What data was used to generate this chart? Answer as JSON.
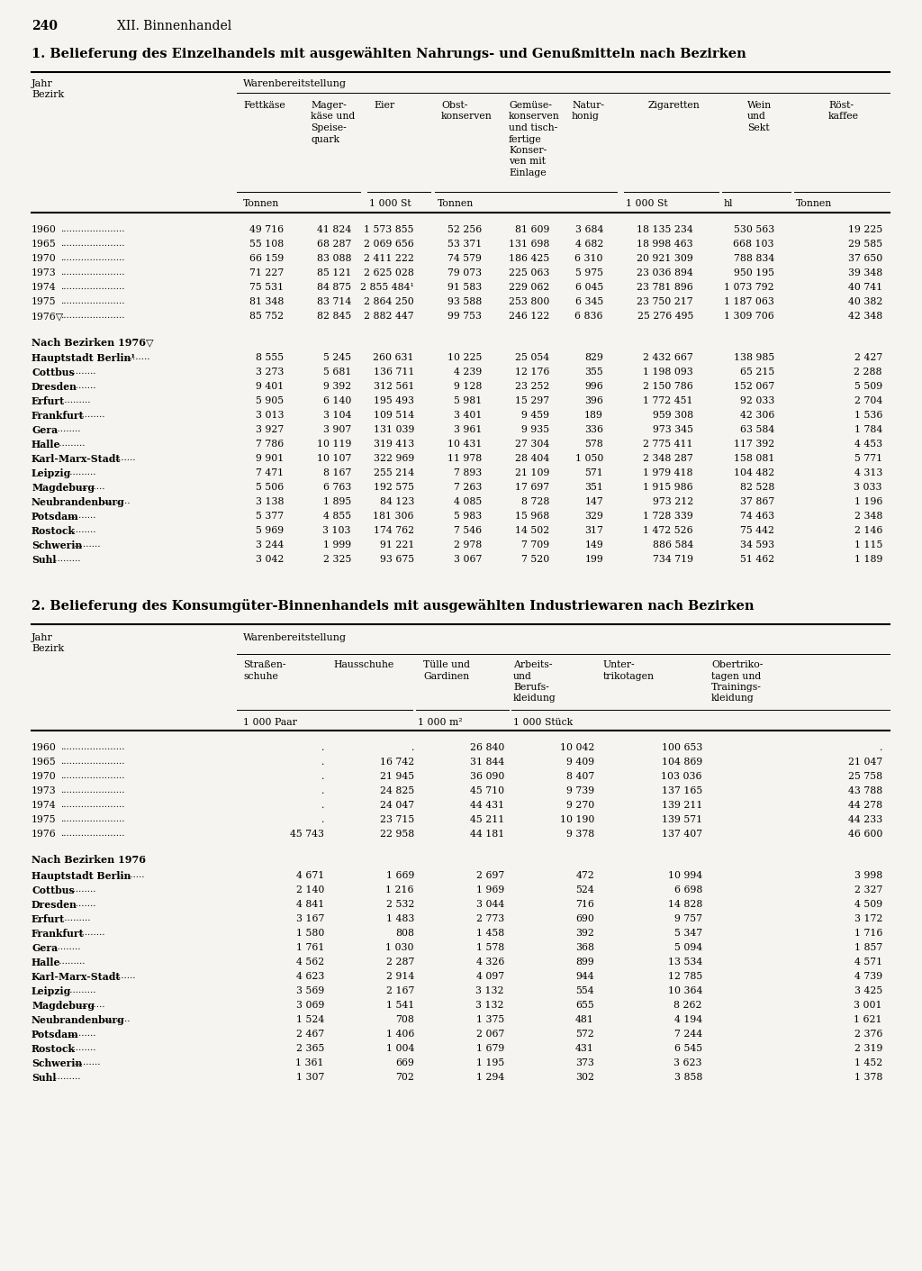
{
  "page_number": "240",
  "chapter": "XII. Binnenhandel",
  "table1_title": "1. Belieferung des Einzelhandels mit ausgewählten Nahrungs- und Genußmitteln nach Bezirken",
  "table2_title": "2. Belieferung des Konsumgüter-Binnenhandels mit ausgewählten Industriewaren nach Bezirken",
  "warenbereitstellung": "Warenbereitstellung",
  "jahr_bezirk": [
    "Jahr",
    "Bezirk"
  ],
  "table1_col_headers": [
    [
      "Fettkäse"
    ],
    [
      "Mager-",
      "käse und",
      "Speise-",
      "quark"
    ],
    [
      "Eier"
    ],
    [
      "Obst-",
      "konserven"
    ],
    [
      "Gemüse-",
      "konserven",
      "und tisch-",
      "fertige",
      "Konser-",
      "ven mit",
      "Einlage"
    ],
    [
      "Natur-",
      "honig"
    ],
    [
      "Zigaretten"
    ],
    [
      "Wein",
      "und",
      "Sekt"
    ],
    [
      "Röst-",
      "kaffee"
    ]
  ],
  "table1_unit_spans": [
    [
      0,
      1,
      "Tonnen"
    ],
    [
      2,
      2,
      "1 000 St"
    ],
    [
      3,
      5,
      "Tonnen"
    ],
    [
      6,
      6,
      "1 000 St"
    ],
    [
      7,
      7,
      "hl"
    ],
    [
      8,
      8,
      "Tonnen"
    ]
  ],
  "table1_years": [
    [
      "1960",
      "49 716",
      "41 824",
      "1 573 855",
      "52 256",
      "81 609",
      "3 684",
      "18 135 234",
      "530 563",
      "19 225"
    ],
    [
      "1965",
      "55 108",
      "68 287",
      "2 069 656",
      "53 371",
      "131 698",
      "4 682",
      "18 998 463",
      "668 103",
      "29 585"
    ],
    [
      "1970",
      "66 159",
      "83 088",
      "2 411 222",
      "74 579",
      "186 425",
      "6 310",
      "20 921 309",
      "788 834",
      "37 650"
    ],
    [
      "1973",
      "71 227",
      "85 121",
      "2 625 028",
      "79 073",
      "225 063",
      "5 975",
      "23 036 894",
      "950 195",
      "39 348"
    ],
    [
      "1974",
      "75 531",
      "84 875",
      "2 855 484¹",
      "91 583",
      "229 062",
      "6 045",
      "23 781 896",
      "1 073 792",
      "40 741"
    ],
    [
      "1975",
      "81 348",
      "83 714",
      "2 864 250",
      "93 588",
      "253 800",
      "6 345",
      "23 750 217",
      "1 187 063",
      "40 382"
    ],
    [
      "1976▽",
      "85 752",
      "82 845",
      "2 882 447",
      "99 753",
      "246 122",
      "6 836",
      "25 276 495",
      "1 309 706",
      "42 348"
    ]
  ],
  "table1_bezirke_header": "Nach Bezirken 1976▽",
  "table1_bezirke": [
    [
      "Hauptstadt Berlin¹",
      "8 555",
      "5 245",
      "260 631",
      "10 225",
      "25 054",
      "829",
      "2 432 667",
      "138 985",
      "2 427"
    ],
    [
      "Cottbus",
      "3 273",
      "5 681",
      "136 711",
      "4 239",
      "12 176",
      "355",
      "1 198 093",
      "65 215",
      "2 288"
    ],
    [
      "Dresden",
      "9 401",
      "9 392",
      "312 561",
      "9 128",
      "23 252",
      "996",
      "2 150 786",
      "152 067",
      "5 509"
    ],
    [
      "Erfurt",
      "5 905",
      "6 140",
      "195 493",
      "5 981",
      "15 297",
      "396",
      "1 772 451",
      "92 033",
      "2 704"
    ],
    [
      "Frankfurt",
      "3 013",
      "3 104",
      "109 514",
      "3 401",
      "9 459",
      "189",
      "959 308",
      "42 306",
      "1 536"
    ],
    [
      "Gera",
      "3 927",
      "3 907",
      "131 039",
      "3 961",
      "9 935",
      "336",
      "973 345",
      "63 584",
      "1 784"
    ],
    [
      "Halle",
      "7 786",
      "10 119",
      "319 413",
      "10 431",
      "27 304",
      "578",
      "2 775 411",
      "117 392",
      "4 453"
    ],
    [
      "Karl-Marx-Stadt",
      "9 901",
      "10 107",
      "322 969",
      "11 978",
      "28 404",
      "1 050",
      "2 348 287",
      "158 081",
      "5 771"
    ],
    [
      "Leipzig",
      "7 471",
      "8 167",
      "255 214",
      "7 893",
      "21 109",
      "571",
      "1 979 418",
      "104 482",
      "4 313"
    ],
    [
      "Magdeburg",
      "5 506",
      "6 763",
      "192 575",
      "7 263",
      "17 697",
      "351",
      "1 915 986",
      "82 528",
      "3 033"
    ],
    [
      "Neubrandenburg",
      "3 138",
      "1 895",
      "84 123",
      "4 085",
      "8 728",
      "147",
      "973 212",
      "37 867",
      "1 196"
    ],
    [
      "Potsdam",
      "5 377",
      "4 855",
      "181 306",
      "5 983",
      "15 968",
      "329",
      "1 728 339",
      "74 463",
      "2 348"
    ],
    [
      "Rostock",
      "5 969",
      "3 103",
      "174 762",
      "7 546",
      "14 502",
      "317",
      "1 472 526",
      "75 442",
      "2 146"
    ],
    [
      "Schwerin",
      "3 244",
      "1 999",
      "91 221",
      "2 978",
      "7 709",
      "149",
      "886 584",
      "34 593",
      "1 115"
    ],
    [
      "Suhl",
      "3 042",
      "2 325",
      "93 675",
      "3 067",
      "7 520",
      "199",
      "734 719",
      "51 462",
      "1 189"
    ]
  ],
  "table2_col_headers": [
    [
      "Straßen-",
      "schuhe"
    ],
    [
      "Hausschuhe"
    ],
    [
      "Tülle und",
      "Gardinen"
    ],
    [
      "Arbeits-",
      "und",
      "Berufs-",
      "kleidung"
    ],
    [
      "Unter-",
      "trikotagen"
    ],
    [
      "Obertriko-",
      "tagen und",
      "Trainings-",
      "kleidung"
    ]
  ],
  "table2_unit_spans": [
    [
      0,
      1,
      "1 000 Paar"
    ],
    [
      2,
      2,
      "1 000 m²"
    ],
    [
      3,
      5,
      "1 000 Stück"
    ]
  ],
  "table2_years": [
    [
      "1960",
      ".",
      ".",
      "26 840",
      "10 042",
      "100 653",
      "."
    ],
    [
      "1965",
      ".",
      "16 742",
      "31 844",
      "9 409",
      "104 869",
      "21 047"
    ],
    [
      "1970",
      ".",
      "21 945",
      "36 090",
      "8 407",
      "103 036",
      "25 758"
    ],
    [
      "1973",
      ".",
      "24 825",
      "45 710",
      "9 739",
      "137 165",
      "43 788"
    ],
    [
      "1974",
      ".",
      "24 047",
      "44 431",
      "9 270",
      "139 211",
      "44 278"
    ],
    [
      "1975",
      ".",
      "23 715",
      "45 211",
      "10 190",
      "139 571",
      "44 233"
    ],
    [
      "1976",
      "45 743",
      "22 958",
      "44 181",
      "9 378",
      "137 407",
      "46 600"
    ]
  ],
  "table2_bezirke_header": "Nach Bezirken 1976",
  "table2_bezirke": [
    [
      "Hauptstadt Berlin",
      "4 671",
      "1 669",
      "2 697",
      "472",
      "10 994",
      "3 998"
    ],
    [
      "Cottbus",
      "2 140",
      "1 216",
      "1 969",
      "524",
      "6 698",
      "2 327"
    ],
    [
      "Dresden",
      "4 841",
      "2 532",
      "3 044",
      "716",
      "14 828",
      "4 509"
    ],
    [
      "Erfurt",
      "3 167",
      "1 483",
      "2 773",
      "690",
      "9 757",
      "3 172"
    ],
    [
      "Frankfurt",
      "1 580",
      "808",
      "1 458",
      "392",
      "5 347",
      "1 716"
    ],
    [
      "Gera",
      "1 761",
      "1 030",
      "1 578",
      "368",
      "5 094",
      "1 857"
    ],
    [
      "Halle",
      "4 562",
      "2 287",
      "4 326",
      "899",
      "13 534",
      "4 571"
    ],
    [
      "Karl-Marx-Stadt",
      "4 623",
      "2 914",
      "4 097",
      "944",
      "12 785",
      "4 739"
    ],
    [
      "Leipzig",
      "3 569",
      "2 167",
      "3 132",
      "554",
      "10 364",
      "3 425"
    ],
    [
      "Magdeburg",
      "3 069",
      "1 541",
      "3 132",
      "655",
      "8 262",
      "3 001"
    ],
    [
      "Neubrandenburg",
      "1 524",
      "708",
      "1 375",
      "481",
      "4 194",
      "1 621"
    ],
    [
      "Potsdam",
      "2 467",
      "1 406",
      "2 067",
      "572",
      "7 244",
      "2 376"
    ],
    [
      "Rostock",
      "2 365",
      "1 004",
      "1 679",
      "431",
      "6 545",
      "2 319"
    ],
    [
      "Schwerin",
      "1 361",
      "669",
      "1 195",
      "373",
      "3 623",
      "1 452"
    ],
    [
      "Suhl",
      "1 307",
      "702",
      "1 294",
      "302",
      "3 858",
      "1 378"
    ]
  ],
  "bg_color": "#f5f4f0"
}
